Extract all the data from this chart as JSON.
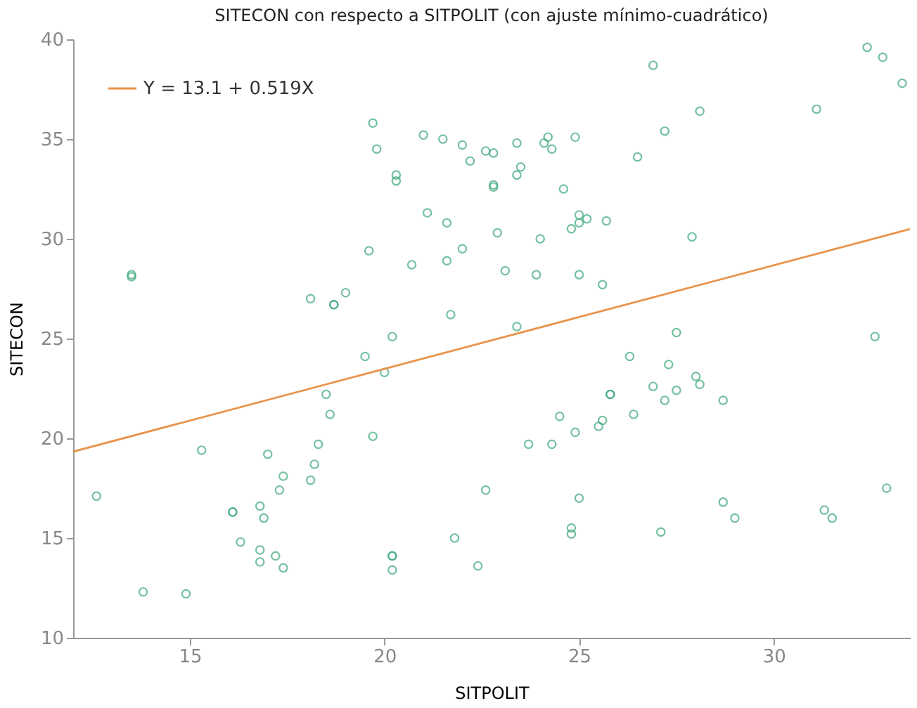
{
  "chart_data": {
    "type": "scatter",
    "title": "SITECON con respecto a SITPOLIT (con ajuste mínimo-cuadrático)",
    "xlabel": "SITPOLIT",
    "ylabel": "SITECON",
    "xlim": [
      12,
      33.5
    ],
    "xticks": [
      15,
      20,
      25,
      30
    ],
    "ylim": [
      10,
      40
    ],
    "yticks": [
      10,
      15,
      20,
      25,
      30,
      35,
      40
    ],
    "grid": false,
    "legend": "top left",
    "series": [
      {
        "marker": "circle",
        "color": "#3aa67a",
        "x": [
          12.6,
          13.5,
          13.5,
          13.8,
          14.9,
          15.3,
          16.1,
          16.1,
          16.3,
          16.8,
          16.9,
          17.0,
          16.8,
          16.8,
          17.2,
          17.4,
          17.3,
          17.4,
          18.1,
          18.2,
          18.3,
          18.5,
          18.6,
          19.7,
          19.5,
          20.0,
          20.2,
          20.2,
          20.2,
          20.2,
          21.8,
          22.4,
          22.6,
          19.7,
          19.8,
          20.3,
          20.3,
          19.6,
          18.1,
          18.7,
          18.7,
          19.0,
          20.7,
          21.1,
          21.6,
          21.6,
          22.0,
          21.7,
          21.0,
          21.5,
          22.0,
          22.2,
          22.6,
          22.8,
          23.4,
          23.4,
          23.5,
          24.1,
          24.2,
          24.3,
          24.9,
          22.8,
          22.8,
          24.6,
          26.5,
          27.2,
          28.1,
          26.9,
          31.1,
          32.4,
          32.8,
          33.3,
          22.9,
          24.0,
          25.0,
          25.2,
          25.0,
          24.8,
          25.7,
          27.9,
          23.1,
          23.9,
          25.0,
          25.6,
          23.4,
          27.5,
          32.6,
          26.3,
          27.3,
          26.9,
          27.5,
          27.2,
          28.0,
          28.1,
          28.7,
          25.8,
          25.8,
          26.4,
          24.5,
          25.6,
          25.5,
          24.9,
          23.7,
          24.3,
          25.0,
          24.8,
          24.8,
          27.1,
          28.7,
          29.0,
          31.3,
          31.5,
          32.9
        ],
        "values": [
          17.1,
          28.2,
          28.1,
          12.3,
          12.2,
          19.4,
          16.3,
          16.3,
          14.8,
          16.6,
          16.0,
          19.2,
          14.4,
          13.8,
          14.1,
          13.5,
          17.4,
          18.1,
          17.9,
          18.7,
          19.7,
          22.2,
          21.2,
          20.1,
          24.1,
          23.3,
          25.1,
          14.1,
          14.1,
          13.4,
          15.0,
          13.6,
          17.4,
          35.8,
          34.5,
          33.2,
          32.9,
          29.4,
          27.0,
          26.7,
          26.7,
          27.3,
          28.7,
          31.3,
          30.8,
          28.9,
          29.5,
          26.2,
          35.2,
          35.0,
          34.7,
          33.9,
          34.4,
          34.3,
          34.8,
          33.2,
          33.6,
          34.8,
          35.1,
          34.5,
          35.1,
          32.7,
          32.6,
          32.5,
          34.1,
          35.4,
          36.4,
          38.7,
          36.5,
          39.6,
          39.1,
          37.8,
          30.3,
          30.0,
          31.2,
          31.0,
          30.8,
          30.5,
          30.9,
          30.1,
          28.4,
          28.2,
          28.2,
          27.7,
          25.6,
          25.3,
          25.1,
          24.1,
          23.7,
          22.6,
          22.4,
          21.9,
          23.1,
          22.7,
          21.9,
          22.2,
          22.2,
          21.2,
          21.1,
          20.9,
          20.6,
          20.3,
          19.7,
          19.7,
          17.0,
          15.5,
          15.2,
          15.3,
          16.8,
          16.0,
          16.4,
          16.0,
          17.5
        ]
      },
      {
        "type": "line",
        "name": "Y = 13.1 + 0.519X",
        "color": "#e8944c",
        "x": [
          12,
          33.5
        ],
        "values": [
          19.33,
          30.49
        ]
      }
    ]
  }
}
